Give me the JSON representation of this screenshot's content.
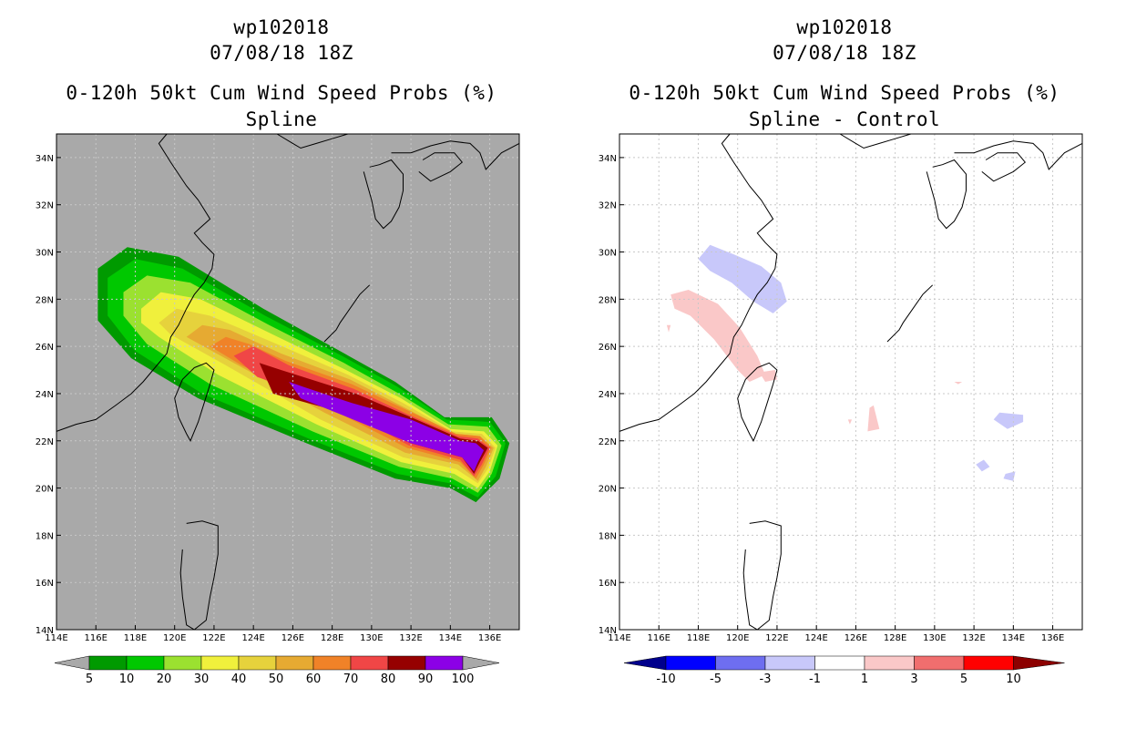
{
  "chart_data": [
    {
      "type": "heatmap",
      "panel": "left",
      "title_lines": [
        "wp102018",
        "07/08/18 18Z",
        "0-120h 50kt Cum Wind Speed Probs (%)",
        "Spline"
      ],
      "xlim": [
        114,
        137.5
      ],
      "ylim": [
        14,
        35
      ],
      "x_ticks": [
        "114E",
        "116E",
        "118E",
        "120E",
        "122E",
        "124E",
        "126E",
        "128E",
        "130E",
        "132E",
        "134E",
        "136E"
      ],
      "y_ticks": [
        "14N",
        "16N",
        "18N",
        "20N",
        "22N",
        "24N",
        "26N",
        "28N",
        "30N",
        "32N",
        "34N"
      ],
      "background": "#a9a9a9",
      "colorbar": {
        "labels": [
          "5",
          "10",
          "20",
          "30",
          "40",
          "50",
          "60",
          "70",
          "80",
          "90",
          "100"
        ],
        "colors": [
          "#009a00",
          "#00c800",
          "#9be130",
          "#f0f03c",
          "#e6d23c",
          "#e6aa32",
          "#f08228",
          "#f04646",
          "#960000",
          "#8c00e6"
        ]
      },
      "contours": [
        {
          "level": 5,
          "color": "#009a00",
          "poly": [
            [
              116.1,
              29.3
            ],
            [
              117.6,
              30.2
            ],
            [
              120.2,
              29.8
            ],
            [
              124.5,
              27.6
            ],
            [
              128.4,
              25.8
            ],
            [
              131.2,
              24.5
            ],
            [
              133.7,
              23.0
            ],
            [
              136.1,
              23.0
            ],
            [
              137.0,
              21.9
            ],
            [
              136.5,
              20.4
            ],
            [
              135.3,
              19.4
            ],
            [
              134.0,
              20.0
            ],
            [
              131.2,
              20.4
            ],
            [
              126.7,
              21.9
            ],
            [
              121.2,
              23.8
            ],
            [
              117.8,
              25.5
            ],
            [
              116.1,
              27.1
            ]
          ]
        },
        {
          "level": 10,
          "color": "#00c800",
          "poly": [
            [
              116.6,
              28.9
            ],
            [
              118.0,
              29.7
            ],
            [
              120.4,
              29.3
            ],
            [
              124.6,
              27.3
            ],
            [
              128.5,
              25.6
            ],
            [
              131.3,
              24.3
            ],
            [
              133.8,
              22.9
            ],
            [
              136.0,
              22.8
            ],
            [
              136.8,
              21.9
            ],
            [
              136.3,
              20.5
            ],
            [
              135.4,
              19.6
            ],
            [
              134.0,
              20.2
            ],
            [
              131.3,
              20.6
            ],
            [
              126.8,
              22.1
            ],
            [
              121.4,
              24.0
            ],
            [
              118.0,
              25.8
            ],
            [
              116.6,
              27.3
            ]
          ]
        },
        {
          "level": 20,
          "color": "#9be130",
          "poly": [
            [
              117.4,
              28.3
            ],
            [
              118.6,
              29.0
            ],
            [
              120.8,
              28.7
            ],
            [
              124.8,
              26.9
            ],
            [
              128.6,
              25.3
            ],
            [
              131.4,
              24.0
            ],
            [
              133.9,
              22.7
            ],
            [
              135.9,
              22.6
            ],
            [
              136.6,
              21.8
            ],
            [
              136.1,
              20.6
            ],
            [
              135.4,
              19.8
            ],
            [
              134.1,
              20.4
            ],
            [
              131.4,
              20.9
            ],
            [
              127.0,
              22.4
            ],
            [
              121.8,
              24.4
            ],
            [
              118.6,
              26.1
            ],
            [
              117.4,
              27.3
            ]
          ]
        },
        {
          "level": 30,
          "color": "#f0f03c",
          "poly": [
            [
              118.3,
              27.6
            ],
            [
              119.3,
              28.3
            ],
            [
              121.3,
              28.0
            ],
            [
              125.0,
              26.5
            ],
            [
              128.7,
              25.0
            ],
            [
              131.5,
              23.8
            ],
            [
              134.0,
              22.5
            ],
            [
              135.7,
              22.4
            ],
            [
              136.4,
              21.8
            ],
            [
              136.0,
              20.7
            ],
            [
              135.4,
              20.0
            ],
            [
              134.2,
              20.6
            ],
            [
              131.5,
              21.1
            ],
            [
              127.2,
              22.7
            ],
            [
              122.2,
              24.8
            ],
            [
              119.2,
              26.4
            ],
            [
              118.3,
              27.0
            ]
          ]
        },
        {
          "level": 40,
          "color": "#e6d23c",
          "poly": [
            [
              119.2,
              27.0
            ],
            [
              120.1,
              27.6
            ],
            [
              121.8,
              27.3
            ],
            [
              125.2,
              26.1
            ],
            [
              128.8,
              24.8
            ],
            [
              131.6,
              23.6
            ],
            [
              134.1,
              22.4
            ],
            [
              135.6,
              22.3
            ],
            [
              136.3,
              21.7
            ],
            [
              135.9,
              20.8
            ],
            [
              135.4,
              20.2
            ],
            [
              134.3,
              20.8
            ],
            [
              131.6,
              21.3
            ],
            [
              127.4,
              22.9
            ],
            [
              122.6,
              25.2
            ],
            [
              119.8,
              26.5
            ]
          ]
        },
        {
          "level": 50,
          "color": "#e6aa32",
          "poly": [
            [
              120.6,
              26.4
            ],
            [
              121.4,
              26.9
            ],
            [
              122.8,
              26.7
            ],
            [
              125.4,
              25.7
            ],
            [
              128.9,
              24.6
            ],
            [
              131.7,
              23.4
            ],
            [
              134.2,
              22.3
            ],
            [
              135.5,
              22.2
            ],
            [
              136.2,
              21.7
            ],
            [
              135.8,
              20.9
            ],
            [
              135.4,
              20.3
            ],
            [
              134.4,
              21.0
            ],
            [
              131.7,
              21.5
            ],
            [
              127.6,
              23.2
            ],
            [
              123.0,
              25.3
            ]
          ]
        },
        {
          "level": 60,
          "color": "#f08228",
          "poly": [
            [
              121.8,
              26.0
            ],
            [
              122.6,
              26.4
            ],
            [
              123.8,
              26.1
            ],
            [
              125.6,
              25.4
            ],
            [
              129.0,
              24.4
            ],
            [
              131.8,
              23.3
            ],
            [
              134.3,
              22.3
            ],
            [
              135.5,
              22.2
            ],
            [
              136.1,
              21.7
            ],
            [
              135.7,
              21.0
            ],
            [
              135.3,
              20.4
            ],
            [
              134.5,
              21.1
            ],
            [
              131.8,
              21.7
            ],
            [
              127.8,
              23.4
            ],
            [
              123.4,
              25.2
            ]
          ]
        },
        {
          "level": 70,
          "color": "#f04646",
          "poly": [
            [
              123.0,
              25.6
            ],
            [
              124.0,
              26.0
            ],
            [
              125.8,
              25.2
            ],
            [
              129.1,
              24.2
            ],
            [
              131.9,
              23.1
            ],
            [
              134.4,
              22.2
            ],
            [
              135.4,
              22.1
            ],
            [
              136.0,
              21.7
            ],
            [
              135.6,
              21.0
            ],
            [
              135.2,
              20.5
            ],
            [
              134.5,
              21.2
            ],
            [
              131.9,
              21.8
            ],
            [
              128.0,
              23.6
            ],
            [
              124.2,
              24.7
            ]
          ]
        },
        {
          "level": 80,
          "color": "#960000",
          "poly": [
            [
              124.3,
              25.3
            ],
            [
              125.4,
              25.0
            ],
            [
              129.2,
              24.0
            ],
            [
              132.0,
              23.0
            ],
            [
              134.5,
              22.1
            ],
            [
              135.4,
              22.0
            ],
            [
              135.9,
              21.7
            ],
            [
              135.5,
              21.1
            ],
            [
              135.2,
              20.6
            ],
            [
              134.6,
              21.3
            ],
            [
              132.0,
              21.9
            ],
            [
              128.1,
              23.3
            ],
            [
              125.0,
              24.0
            ]
          ]
        },
        {
          "level": 90,
          "color": "#8c00e6",
          "poly": [
            [
              125.8,
              24.5
            ],
            [
              126.5,
              24.3
            ],
            [
              129.0,
              23.6
            ],
            [
              132.0,
              22.9
            ],
            [
              134.5,
              22.0
            ],
            [
              135.3,
              21.9
            ],
            [
              135.7,
              21.6
            ],
            [
              135.4,
              21.1
            ],
            [
              135.2,
              20.7
            ],
            [
              134.6,
              21.3
            ],
            [
              132.0,
              21.9
            ],
            [
              128.2,
              23.2
            ],
            [
              126.4,
              23.8
            ]
          ]
        }
      ]
    },
    {
      "type": "heatmap",
      "panel": "right",
      "title_lines": [
        "wp102018",
        "07/08/18 18Z",
        "0-120h 50kt Cum Wind Speed Probs (%)",
        "Spline - Control"
      ],
      "xlim": [
        114,
        137.5
      ],
      "ylim": [
        14,
        35
      ],
      "x_ticks": [
        "114E",
        "116E",
        "118E",
        "120E",
        "122E",
        "124E",
        "126E",
        "128E",
        "130E",
        "132E",
        "134E",
        "136E"
      ],
      "y_ticks": [
        "14N",
        "16N",
        "18N",
        "20N",
        "22N",
        "24N",
        "26N",
        "28N",
        "30N",
        "32N",
        "34N"
      ],
      "background": "#ffffff",
      "colorbar": {
        "labels": [
          "-10",
          "-5",
          "-3",
          "-1",
          "1",
          "3",
          "5",
          "10"
        ],
        "colors": [
          "#00008c",
          "#0000ff",
          "#6e6ef0",
          "#c8c8fa",
          "#ffffff",
          "#fac8c8",
          "#f06e6e",
          "#ff0000",
          "#8c0000"
        ]
      },
      "contours": [
        {
          "level": -1,
          "color": "#c8c8fa",
          "poly": [
            [
              118.0,
              29.7
            ],
            [
              118.6,
              30.3
            ],
            [
              119.8,
              29.9
            ],
            [
              121.2,
              29.4
            ],
            [
              122.2,
              28.7
            ],
            [
              122.5,
              27.9
            ],
            [
              121.8,
              27.4
            ],
            [
              120.8,
              27.9
            ],
            [
              119.7,
              28.7
            ],
            [
              118.6,
              29.2
            ]
          ]
        },
        {
          "level": 1,
          "color": "#fac8c8",
          "poly": [
            [
              116.6,
              28.2
            ],
            [
              117.5,
              28.4
            ],
            [
              119.0,
              27.8
            ],
            [
              120.1,
              26.8
            ],
            [
              121.0,
              25.6
            ],
            [
              121.4,
              24.8
            ],
            [
              120.6,
              24.5
            ],
            [
              120.0,
              25.0
            ],
            [
              118.8,
              26.3
            ],
            [
              117.6,
              27.3
            ],
            [
              116.8,
              27.6
            ]
          ]
        },
        {
          "level": 1,
          "color": "#fac8c8",
          "poly": [
            [
              121.1,
              24.9
            ],
            [
              121.9,
              25.0
            ],
            [
              122.0,
              24.6
            ],
            [
              121.4,
              24.5
            ]
          ]
        },
        {
          "level": 1,
          "color": "#fac8c8",
          "poly": [
            [
              126.7,
              23.4
            ],
            [
              126.9,
              23.5
            ],
            [
              127.2,
              22.5
            ],
            [
              126.6,
              22.4
            ]
          ]
        },
        {
          "level": 1,
          "color": "#fac8c8",
          "poly": [
            [
              116.4,
              26.9
            ],
            [
              116.6,
              26.9
            ],
            [
              116.5,
              26.6
            ]
          ]
        },
        {
          "level": 1,
          "color": "#fac8c8",
          "poly": [
            [
              125.6,
              22.9
            ],
            [
              125.8,
              22.9
            ],
            [
              125.7,
              22.7
            ]
          ]
        },
        {
          "level": 1,
          "color": "#fac8c8",
          "poly": [
            [
              131.0,
              24.5
            ],
            [
              131.4,
              24.5
            ],
            [
              131.2,
              24.4
            ]
          ]
        },
        {
          "level": -1,
          "color": "#c8c8fa",
          "poly": [
            [
              133.0,
              22.9
            ],
            [
              133.3,
              23.2
            ],
            [
              134.5,
              23.1
            ],
            [
              134.5,
              22.8
            ],
            [
              133.7,
              22.5
            ]
          ]
        },
        {
          "level": -1,
          "color": "#c8c8fa",
          "poly": [
            [
              132.1,
              21.0
            ],
            [
              132.5,
              21.2
            ],
            [
              132.8,
              20.9
            ],
            [
              132.4,
              20.7
            ]
          ]
        },
        {
          "level": -1,
          "color": "#c8c8fa",
          "poly": [
            [
              133.6,
              20.6
            ],
            [
              134.1,
              20.7
            ],
            [
              134.0,
              20.3
            ],
            [
              133.5,
              20.4
            ]
          ]
        }
      ]
    }
  ]
}
